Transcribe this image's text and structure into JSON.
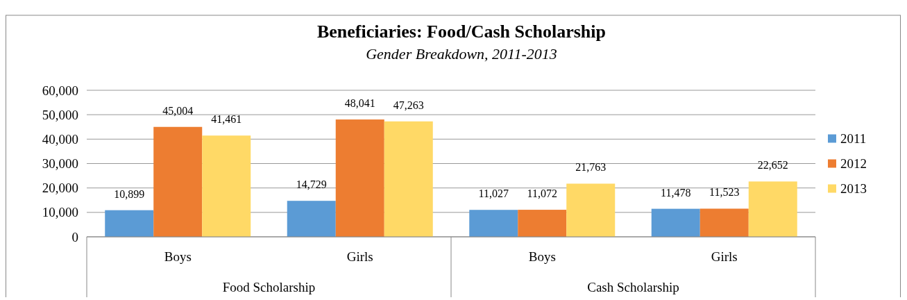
{
  "chart_data": {
    "type": "bar",
    "title": "Beneficiaries: Food/Cash Scholarship",
    "subtitle": "Gender Breakdown, 2011-2013",
    "categories": [
      "Boys",
      "Girls",
      "Boys",
      "Girls"
    ],
    "annotations": [
      "Food Scholarship",
      "Cash Scholarship"
    ],
    "series": [
      {
        "name": "2011",
        "color": "#5b9bd5",
        "values": [
          10899,
          14729,
          11027,
          11478
        ],
        "value_labels": [
          "10,899",
          "14,729",
          "11,027",
          "11,478"
        ]
      },
      {
        "name": "2012",
        "color": "#ed7d31",
        "values": [
          45004,
          48041,
          11072,
          11523
        ],
        "value_labels": [
          "45,004",
          "48,041",
          "11,072",
          "11,523"
        ]
      },
      {
        "name": "2013",
        "color": "#ffd966",
        "values": [
          41461,
          47263,
          21763,
          22652
        ],
        "value_labels": [
          "41,461",
          "47,263",
          "21,763",
          "22,652"
        ]
      }
    ],
    "ylim": [
      0,
      60000
    ],
    "yticks": [
      {
        "value": 0,
        "label": "0"
      },
      {
        "value": 10000,
        "label": "10,000"
      },
      {
        "value": 20000,
        "label": "20,000"
      },
      {
        "value": 30000,
        "label": "30,000"
      },
      {
        "value": 40000,
        "label": "40,000"
      },
      {
        "value": 50000,
        "label": "50,000"
      },
      {
        "value": 60000,
        "label": "60,000"
      }
    ],
    "grid": "y",
    "legend": "right"
  }
}
